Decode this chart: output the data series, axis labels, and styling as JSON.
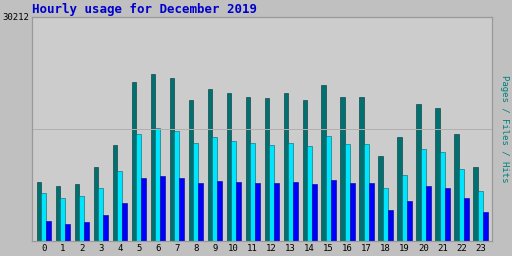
{
  "title": "Hourly usage for December 2019",
  "title_color": "#0000cc",
  "title_fontsize": 9,
  "ylabel_right": "Pages / Files / Hits",
  "categories": [
    0,
    1,
    2,
    3,
    4,
    5,
    6,
    7,
    8,
    9,
    10,
    11,
    12,
    13,
    14,
    15,
    16,
    17,
    18,
    19,
    20,
    21,
    22,
    23
  ],
  "pages": [
    2800,
    2400,
    2600,
    3500,
    5200,
    8500,
    8800,
    8600,
    7800,
    8200,
    8000,
    7900,
    7800,
    8000,
    7700,
    8300,
    7800,
    7800,
    4200,
    5500,
    7500,
    7200,
    5900,
    4000
  ],
  "files": [
    6500,
    5900,
    6100,
    7200,
    9500,
    14500,
    15200,
    14800,
    13200,
    14000,
    13500,
    13200,
    13000,
    13300,
    12800,
    14200,
    13100,
    13100,
    7200,
    9000,
    12500,
    12000,
    9800,
    6800
  ],
  "hits": [
    8000,
    7500,
    7700,
    10000,
    13000,
    21500,
    22500,
    22000,
    19000,
    20500,
    20000,
    19500,
    19300,
    20000,
    19000,
    21000,
    19500,
    19500,
    11500,
    14000,
    18500,
    18000,
    14500,
    10000
  ],
  "bar_width": 0.25,
  "pages_color": "#0000ff",
  "files_color": "#00e5ff",
  "hits_color": "#007070",
  "bg_color": "#c0c0c0",
  "plot_bg_color": "#cccccc",
  "ylim": [
    0,
    30212
  ],
  "ytick_val": 30212,
  "ytick_label": "30212",
  "grid_color": "#b0b0b0",
  "border_color": "#999999"
}
